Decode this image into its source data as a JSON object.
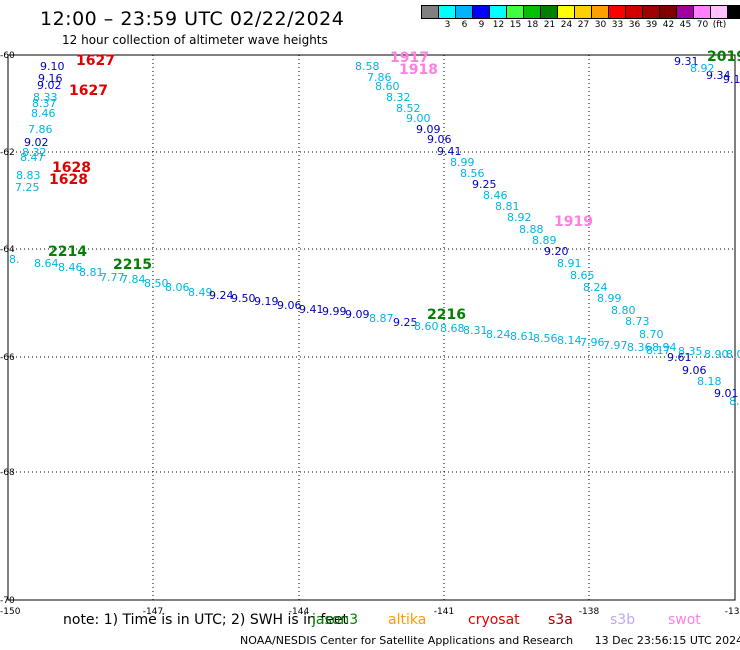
{
  "title": "12:00 – 23:59 UTC 02/22/2024",
  "subtitle": "12 hour collection of altimeter wave heights",
  "colorbar": {
    "colors": [
      "#808080",
      "#00ffff",
      "#00b3ff",
      "#0000ff",
      "#00ffff",
      "#40ff40",
      "#00c000",
      "#008000",
      "#ffff00",
      "#ffd000",
      "#ffa000",
      "#ff0000",
      "#d00000",
      "#a00000",
      "#800000",
      "#a000a0",
      "#ff80ff",
      "#ffc0ff",
      "#000000"
    ],
    "labels": [
      "3",
      "6",
      "9",
      "12",
      "15",
      "18",
      "21",
      "24",
      "27",
      "30",
      "33",
      "36",
      "39",
      "42",
      "45",
      "70",
      "(ft)"
    ]
  },
  "axes": {
    "lat_labels": [
      "-60",
      "-62",
      "-64",
      "-66",
      "-68",
      "-70"
    ],
    "lon_labels": [
      "-150",
      "-147",
      "-144",
      "-141",
      "-138",
      "-135"
    ]
  },
  "tracks": [
    {
      "color": "#0000c0",
      "values": [
        "9.10",
        "9.16",
        "9.02"
      ]
    },
    {
      "color": "#00b4e6",
      "values": [
        "8.33",
        "8.37",
        "8.46",
        "7.86"
      ]
    },
    {
      "color": "#0000c0",
      "values": [
        "9.02"
      ]
    },
    {
      "color": "#00b4e6",
      "values": [
        "8.32",
        "8.47",
        "8.83",
        "7.25"
      ]
    },
    {
      "color": "#00b4e6",
      "values": [
        "8.58",
        "7.86",
        "8.60",
        "8.32",
        "8.52",
        "9.00"
      ]
    },
    {
      "color": "#0000c0",
      "values": [
        "9.09",
        "9.06",
        "9.41"
      ]
    },
    {
      "color": "#00b4e6",
      "values": [
        "8.99",
        "8.56"
      ]
    },
    {
      "color": "#0000c0",
      "values": [
        "9.25"
      ]
    },
    {
      "color": "#00b4e6",
      "values": [
        "8.46",
        "8.81",
        "8.92",
        "8.88",
        "8.89"
      ]
    },
    {
      "color": "#0000c0",
      "values": [
        "9.20"
      ]
    },
    {
      "color": "#00b4e6",
      "values": [
        "8.91",
        "8.65",
        "8.24",
        "8.99",
        "8.80",
        "8.73",
        "8.70",
        "8.94"
      ]
    },
    {
      "color": "#0000c0",
      "values": [
        "9.61",
        "9.06"
      ]
    },
    {
      "color": "#00b4e6",
      "values": [
        "8.35",
        "8.90",
        "8.0",
        "8.18"
      ]
    },
    {
      "color": "#0000c0",
      "values": [
        "9.01"
      ]
    },
    {
      "color": "#00b4e6",
      "values": [
        "8.",
        "8.64",
        "8.46",
        "8.81",
        "7.77",
        "7.84",
        "8.50",
        "8.06",
        "8.49",
        "8.54"
      ]
    },
    {
      "color": "#0000c0",
      "values": [
        "9.24",
        "9.50",
        "9.19",
        "9.06",
        "9.41",
        "9.99",
        "9.09"
      ]
    },
    {
      "color": "#00b4e6",
      "values": [
        "8.87"
      ]
    },
    {
      "color": "#0000c0",
      "values": [
        "9.25"
      ]
    },
    {
      "color": "#00b4e6",
      "values": [
        "8.60",
        "8.68",
        "8.31",
        "8.24",
        "8.61",
        "8.56",
        "8.14",
        "7.96",
        "7.97",
        "8.36",
        "8.17"
      ]
    },
    {
      "color": "#0000c0",
      "values": [
        "9.31",
        "9.34"
      ]
    },
    {
      "color": "#00b4e6",
      "values": [
        "8.92"
      ]
    },
    {
      "color": "#0000c0",
      "values": [
        "9.1"
      ]
    }
  ],
  "pass_labels": [
    {
      "text": "1627",
      "color": "#e00000"
    },
    {
      "text": "1627",
      "color": "#e00000"
    },
    {
      "text": "1628",
      "color": "#e00000"
    },
    {
      "text": "1628",
      "color": "#e00000"
    },
    {
      "text": "1917",
      "color": "#ff80e0"
    },
    {
      "text": "1918",
      "color": "#ff80e0"
    },
    {
      "text": "1919",
      "color": "#ff80e0"
    },
    {
      "text": "2019",
      "color": "#008000"
    },
    {
      "text": "2214",
      "color": "#008000"
    },
    {
      "text": "2215",
      "color": "#008000"
    },
    {
      "text": "2216",
      "color": "#008000"
    }
  ],
  "note": "note:  1) Time is in UTC;  2) SWH is in feet",
  "satellites": [
    {
      "name": "jason3",
      "color": "#008000"
    },
    {
      "name": "altika",
      "color": "#ff9900"
    },
    {
      "name": "cryosat",
      "color": "#e00000"
    },
    {
      "name": "s3a",
      "color": "#a00000"
    },
    {
      "name": "s3b",
      "color": "#c0a8f0"
    },
    {
      "name": "swot",
      "color": "#ff80e0"
    }
  ],
  "footer": {
    "credit": "NOAA/NESDIS Center for Satellite Applications and Research",
    "timestamp": "13 Dec 23:56:15 UTC 2024"
  }
}
